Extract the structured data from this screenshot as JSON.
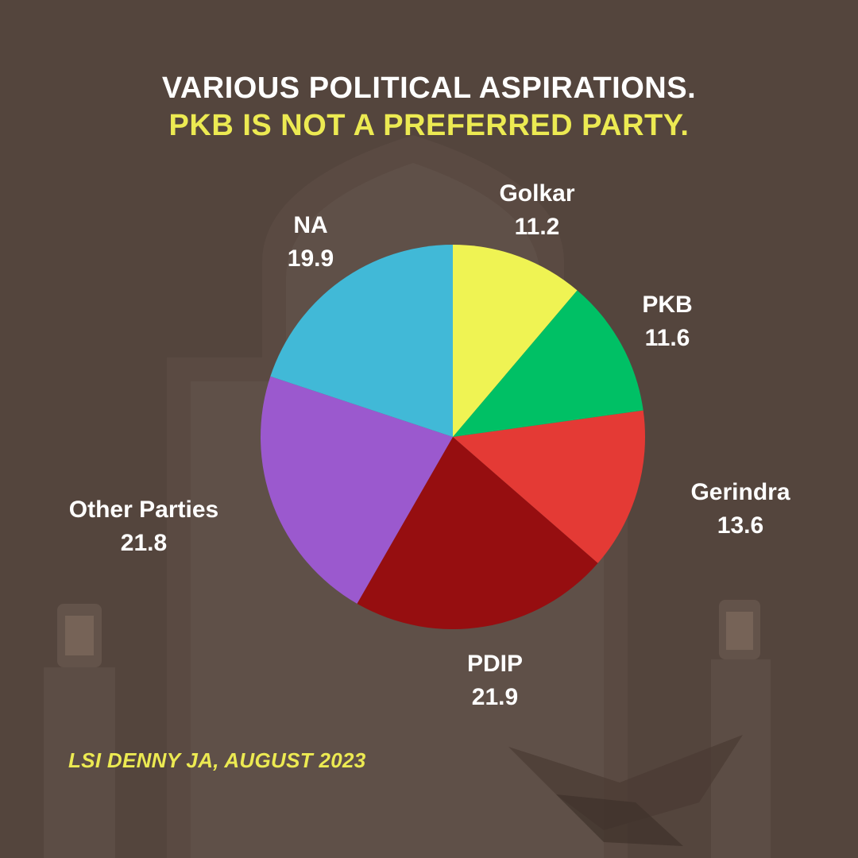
{
  "title": {
    "line1": "VARIOUS POLITICAL ASPIRATIONS.",
    "line2": "PKB IS NOT A PREFERRED PARTY."
  },
  "source": "LSI DENNY JA, AUGUST 2023",
  "chart_data": {
    "type": "pie",
    "slices": [
      {
        "name": "Golkar",
        "value": 11.2,
        "color": "#eff353"
      },
      {
        "name": "PKB",
        "value": 11.6,
        "color": "#00c065"
      },
      {
        "name": "Gerindra",
        "value": 13.6,
        "color": "#e43a35"
      },
      {
        "name": "PDIP",
        "value": 21.9,
        "color": "#960e10"
      },
      {
        "name": "Other Parties",
        "value": 21.8,
        "color": "#9b59ce"
      },
      {
        "name": "NA",
        "value": 19.9,
        "color": "#41b9d7"
      }
    ]
  }
}
